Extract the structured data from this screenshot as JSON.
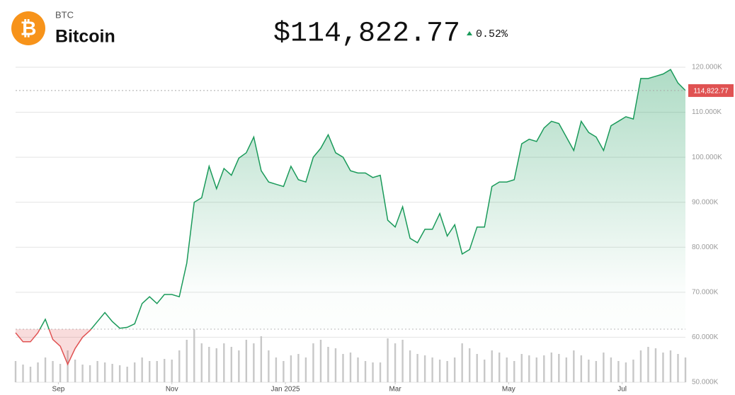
{
  "chart_data": {
    "type": "line",
    "symbol": "BTC",
    "name": "Bitcoin",
    "price_text": "$114,822.77",
    "change_text": "0.52%",
    "current_price": 114822.77,
    "current_price_label": "114,822.77",
    "baseline": 61800,
    "up_color": "#1a9a5a",
    "down_color": "#e05252",
    "volume_color": "#c8c8c8",
    "xlim": [
      0,
      360
    ],
    "xticks": [
      {
        "value": 23,
        "label": "Sep"
      },
      {
        "value": 84,
        "label": "Nov"
      },
      {
        "value": 145,
        "label": "Jan 2025"
      },
      {
        "value": 204,
        "label": "Mar"
      },
      {
        "value": 265,
        "label": "May"
      },
      {
        "value": 326,
        "label": "Jul"
      }
    ],
    "ylim": [
      50000,
      120000
    ],
    "yticks": [
      {
        "value": 50000,
        "label": "50.000K"
      },
      {
        "value": 60000,
        "label": "60.000K"
      },
      {
        "value": 70000,
        "label": "70.000K"
      },
      {
        "value": 80000,
        "label": "80.000K"
      },
      {
        "value": 90000,
        "label": "90.000K"
      },
      {
        "value": 100000,
        "label": "100.000K"
      },
      {
        "value": 110000,
        "label": "110.000K"
      },
      {
        "value": 120000,
        "label": "120.000K"
      }
    ],
    "grid": true,
    "x": [
      0,
      4,
      8,
      12,
      16,
      20,
      24,
      28,
      32,
      36,
      40,
      44,
      48,
      52,
      56,
      60,
      64,
      68,
      72,
      76,
      80,
      84,
      88,
      92,
      96,
      100,
      104,
      108,
      112,
      116,
      120,
      124,
      128,
      132,
      136,
      140,
      144,
      148,
      152,
      156,
      160,
      164,
      168,
      172,
      176,
      180,
      184,
      188,
      192,
      196,
      200,
      204,
      208,
      212,
      216,
      220,
      224,
      228,
      232,
      236,
      240,
      244,
      248,
      252,
      256,
      260,
      264,
      268,
      272,
      276,
      280,
      284,
      288,
      292,
      296,
      300,
      304,
      308,
      312,
      316,
      320,
      324,
      328,
      332,
      336,
      340,
      344,
      348,
      352,
      356,
      360
    ],
    "values": [
      61000,
      59000,
      59000,
      61000,
      64000,
      59500,
      58000,
      54000,
      57500,
      60000,
      61500,
      63500,
      65500,
      63500,
      62000,
      62200,
      63000,
      67500,
      69000,
      67500,
      69500,
      69500,
      69000,
      76500,
      90000,
      91000,
      98000,
      93000,
      97500,
      96000,
      99800,
      101000,
      104500,
      97000,
      94500,
      94000,
      93500,
      98000,
      95000,
      94500,
      100000,
      102000,
      105000,
      101000,
      100000,
      97000,
      96500,
      96500,
      95500,
      96000,
      86000,
      84500,
      89000,
      82000,
      81000,
      84000,
      84000,
      87500,
      82500,
      85000,
      78500,
      79500,
      84500,
      84500,
      93500,
      94500,
      94500,
      95000,
      103000,
      104000,
      103500,
      106500,
      108000,
      107500,
      104500,
      101500,
      108000,
      105500,
      104500,
      101500,
      107000,
      108000,
      109000,
      108500,
      117500,
      117500,
      118000,
      118500,
      119500,
      116500,
      114822.77
    ],
    "volume": [
      30,
      25,
      22,
      28,
      35,
      30,
      26,
      45,
      32,
      25,
      24,
      30,
      28,
      26,
      24,
      22,
      28,
      35,
      30,
      30,
      33,
      32,
      45,
      60,
      75,
      55,
      50,
      48,
      55,
      50,
      45,
      60,
      55,
      65,
      45,
      35,
      30,
      38,
      40,
      35,
      55,
      60,
      50,
      48,
      40,
      42,
      35,
      30,
      28,
      28,
      62,
      55,
      60,
      45,
      40,
      38,
      35,
      32,
      30,
      35,
      55,
      48,
      40,
      32,
      45,
      42,
      35,
      30,
      40,
      38,
      35,
      38,
      42,
      40,
      35,
      45,
      38,
      32,
      30,
      42,
      35,
      30,
      28,
      32,
      45,
      50,
      48,
      42,
      45,
      40,
      35
    ]
  }
}
